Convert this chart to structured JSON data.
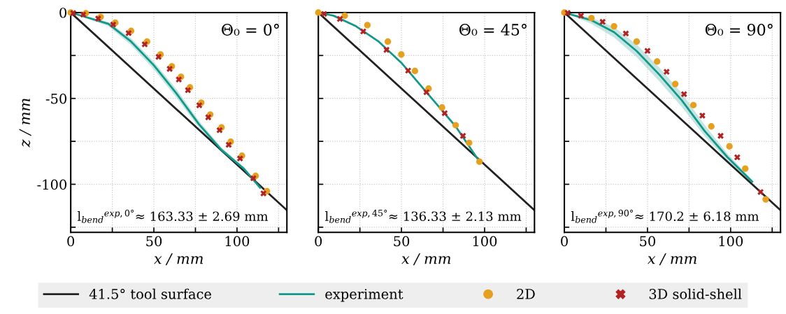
{
  "chart_data": [
    {
      "type": "line",
      "xlabel": "x / mm",
      "ylabel": "z / mm",
      "xlim": [
        0,
        130
      ],
      "ylim": [
        -128,
        0
      ],
      "xticks": [
        0,
        {
          "value": 25,
          "label": null
        },
        50,
        {
          "value": 75,
          "label": null
        },
        100,
        {
          "value": 125,
          "label": null
        }
      ],
      "yticks": [
        0,
        {
          "value": -25,
          "label": null
        },
        {
          "value": -50,
          "label": "-50"
        },
        {
          "value": -75,
          "label": null
        },
        {
          "value": -100,
          "label": "-100"
        },
        {
          "value": -125,
          "label": null
        }
      ],
      "grid": true,
      "legend": "bottom",
      "annotations": [
        "Θ₀ = 0°",
        "l$_{bend}$$^{exp,0°}$≈ 163.33 ± 2.69 mm"
      ],
      "series": [
        {
          "name": "41.5° tool surface",
          "color": "#222222",
          "x": [
            0,
            130
          ],
          "values": [
            0,
            -115.1
          ]
        },
        {
          "name": "experiment",
          "color": "#13998a",
          "x": [
            0,
            22.7,
            36.3,
            49.9,
            63.5,
            77.1,
            90.7,
            104.2,
            113.9
          ],
          "values": [
            0,
            -6.6,
            -16.9,
            -30.6,
            -47,
            -65,
            -80,
            -91,
            -102
          ],
          "lower": [
            0,
            -8,
            -19,
            -33,
            -49.5,
            -67,
            -81.5,
            -92,
            -102.5
          ],
          "upper": [
            0,
            -5.5,
            -15,
            -28.5,
            -44.5,
            -63,
            -78.5,
            -90,
            -101.5
          ]
        },
        {
          "name": "2D",
          "type": "scatter",
          "marker": "circle",
          "color": "#e6a020",
          "x": [
            0,
            9.1,
            18.0,
            26.8,
            36.3,
            45.9,
            54.0,
            60.8,
            66.3,
            71.7,
            78.5,
            83.9,
            90.7,
            96.2,
            103.0,
            111.2,
            118.0
          ],
          "values": [
            0,
            -0.4,
            -2.5,
            -5.9,
            -10.7,
            -16.9,
            -24.4,
            -31.3,
            -37.4,
            -43.6,
            -52.5,
            -59.4,
            -66.9,
            -75.2,
            -83.4,
            -95.1,
            -104.0
          ]
        },
        {
          "name": "3D solid-shell",
          "type": "scatter",
          "marker": "cross",
          "color": "#b22222",
          "x": [
            1.5,
            7.5,
            16.5,
            25.5,
            34.8,
            44.5,
            52.8,
            59.5,
            65.0,
            70.5,
            77.3,
            82.7,
            89.5,
            95.0,
            101.8,
            109.8,
            115.9
          ],
          "values": [
            -0.3,
            -1.2,
            -3.5,
            -7.0,
            -12.0,
            -18.5,
            -25.8,
            -32.8,
            -39.0,
            -45.2,
            -54.0,
            -61.0,
            -68.5,
            -77.0,
            -85.0,
            -96.5,
            -105.3
          ]
        }
      ]
    },
    {
      "type": "line",
      "xlabel": "x / mm",
      "xlim": [
        0,
        130
      ],
      "ylim": [
        -128,
        0
      ],
      "tick_labels": "x",
      "xticks": [
        0,
        {
          "value": 25,
          "label": null
        },
        50,
        {
          "value": 75,
          "label": null
        },
        100,
        {
          "value": 125,
          "label": null
        }
      ],
      "yticks": [
        {
          "value": 0,
          "label": null
        },
        {
          "value": -25,
          "label": null
        },
        {
          "value": -50,
          "label": null
        },
        {
          "value": -75,
          "label": null
        },
        {
          "value": -100,
          "label": null
        },
        {
          "value": -125,
          "label": null
        }
      ],
      "grid": true,
      "legend": "bottom",
      "annotations": [
        "Θ₀ = 45°",
        "l$_{bend}$$^{exp,45°}$≈ 136.33 ± 2.13 mm"
      ],
      "series": [
        {
          "name": "41.5° tool surface",
          "color": "#222222",
          "x": [
            0,
            130
          ],
          "values": [
            0,
            -115.1
          ]
        },
        {
          "name": "experiment",
          "color": "#13998a",
          "x": [
            0,
            9.1,
            22.7,
            36.3,
            49.9,
            60.8,
            71.7,
            82.6,
            95.5
          ],
          "values": [
            0,
            -1.8,
            -8,
            -16.9,
            -29.2,
            -41.6,
            -53.9,
            -66.3,
            -84.8
          ]
        },
        {
          "name": "2D",
          "type": "scatter",
          "marker": "circle",
          "color": "#e6a020",
          "x": [
            0,
            15.9,
            29.5,
            41.8,
            49.9,
            58.1,
            66.3,
            74.4,
            82.6,
            90.7,
            96.9
          ],
          "values": [
            0,
            -1.8,
            -7.3,
            -16.9,
            -24.4,
            -34,
            -44.3,
            -55.3,
            -65.6,
            -75.9,
            -86.8
          ]
        },
        {
          "name": "3D solid-shell",
          "type": "scatter",
          "marker": "cross",
          "color": "#b22222",
          "x": [
            3.5,
            13,
            27,
            41,
            54,
            65,
            76,
            87
          ],
          "values": [
            -0.8,
            -3.7,
            -11,
            -21.7,
            -33.8,
            -46.4,
            -58.6,
            -71.8
          ]
        }
      ]
    },
    {
      "type": "line",
      "xlabel": "x / mm",
      "xlim": [
        0,
        130
      ],
      "ylim": [
        -128,
        0
      ],
      "tick_labels": "x",
      "xticks": [
        0,
        {
          "value": 25,
          "label": null
        },
        50,
        {
          "value": 75,
          "label": null
        },
        100,
        {
          "value": 125,
          "label": null
        }
      ],
      "yticks": [
        {
          "value": 0,
          "label": null
        },
        {
          "value": -25,
          "label": null
        },
        {
          "value": -50,
          "label": null
        },
        {
          "value": -75,
          "label": null
        },
        {
          "value": -100,
          "label": null
        },
        {
          "value": -125,
          "label": null
        }
      ],
      "grid": true,
      "legend": "bottom",
      "annotations": [
        "Θ₀ = 90°",
        "l$_{bend}$$^{exp,90°}$≈ 170.2 ± 6.18 mm"
      ],
      "series": [
        {
          "name": "41.5° tool surface",
          "color": "#222222",
          "x": [
            0,
            130
          ],
          "values": [
            0,
            -115.1
          ]
        },
        {
          "name": "experiment",
          "color": "#13998a",
          "x": [
            0,
            16.3,
            29.9,
            43.5,
            57.1,
            70.7,
            84.4,
            98,
            113
          ],
          "values": [
            0,
            -4.5,
            -11.4,
            -22.4,
            -36.1,
            -51.2,
            -69,
            -84.1,
            -98.5
          ],
          "lower": [
            0,
            -6.5,
            -14.5,
            -26,
            -40,
            -55,
            -72,
            -86,
            -99.5
          ],
          "upper": [
            0,
            -3,
            -8.5,
            -18.5,
            -32,
            -47,
            -65.5,
            -82,
            -97.5
          ]
        },
        {
          "name": "2D",
          "type": "scatter",
          "marker": "circle",
          "color": "#e6a020",
          "x": [
            0,
            16.3,
            29.9,
            43.5,
            55.8,
            66.7,
            77.6,
            88.4,
            99.3,
            108.8,
            121.1
          ],
          "values": [
            0,
            -3.2,
            -8,
            -16.9,
            -28.5,
            -41.6,
            -53.9,
            -66.3,
            -77.9,
            -90.9,
            -108.8
          ]
        },
        {
          "name": "3D solid-shell",
          "type": "scatter",
          "marker": "cross",
          "color": "#b22222",
          "x": [
            2,
            10,
            23,
            37,
            50,
            61.5,
            72,
            83,
            94,
            104,
            118
          ],
          "values": [
            -0.2,
            -1.8,
            -5.4,
            -12.2,
            -22.3,
            -34.5,
            -47.5,
            -60,
            -71.8,
            -84.3,
            -104.5
          ]
        }
      ]
    }
  ]
}
